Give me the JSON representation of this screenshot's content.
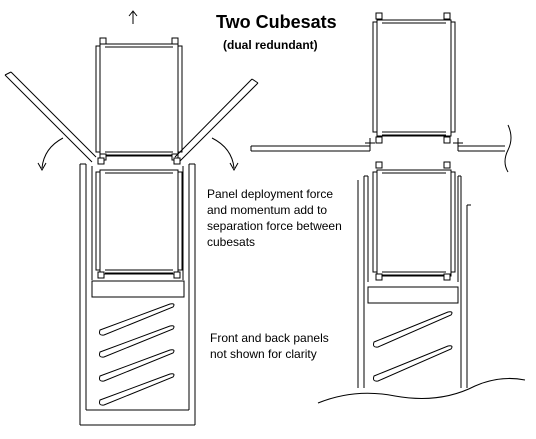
{
  "title": "Two Cubesats",
  "subtitle": "(dual redundant)",
  "notes": {
    "deployment": [
      "Panel deployment force",
      "and momentum add to",
      "separation force between",
      "cubesats"
    ],
    "panels": [
      "Front and back panels",
      "not shown for clarity"
    ]
  },
  "colors": {
    "ink": "#000000",
    "background": "#ffffff"
  },
  "icons": {
    "up_arrow": "up-arrow-icon",
    "rotation_arrows": "curved-arrow-icon"
  }
}
